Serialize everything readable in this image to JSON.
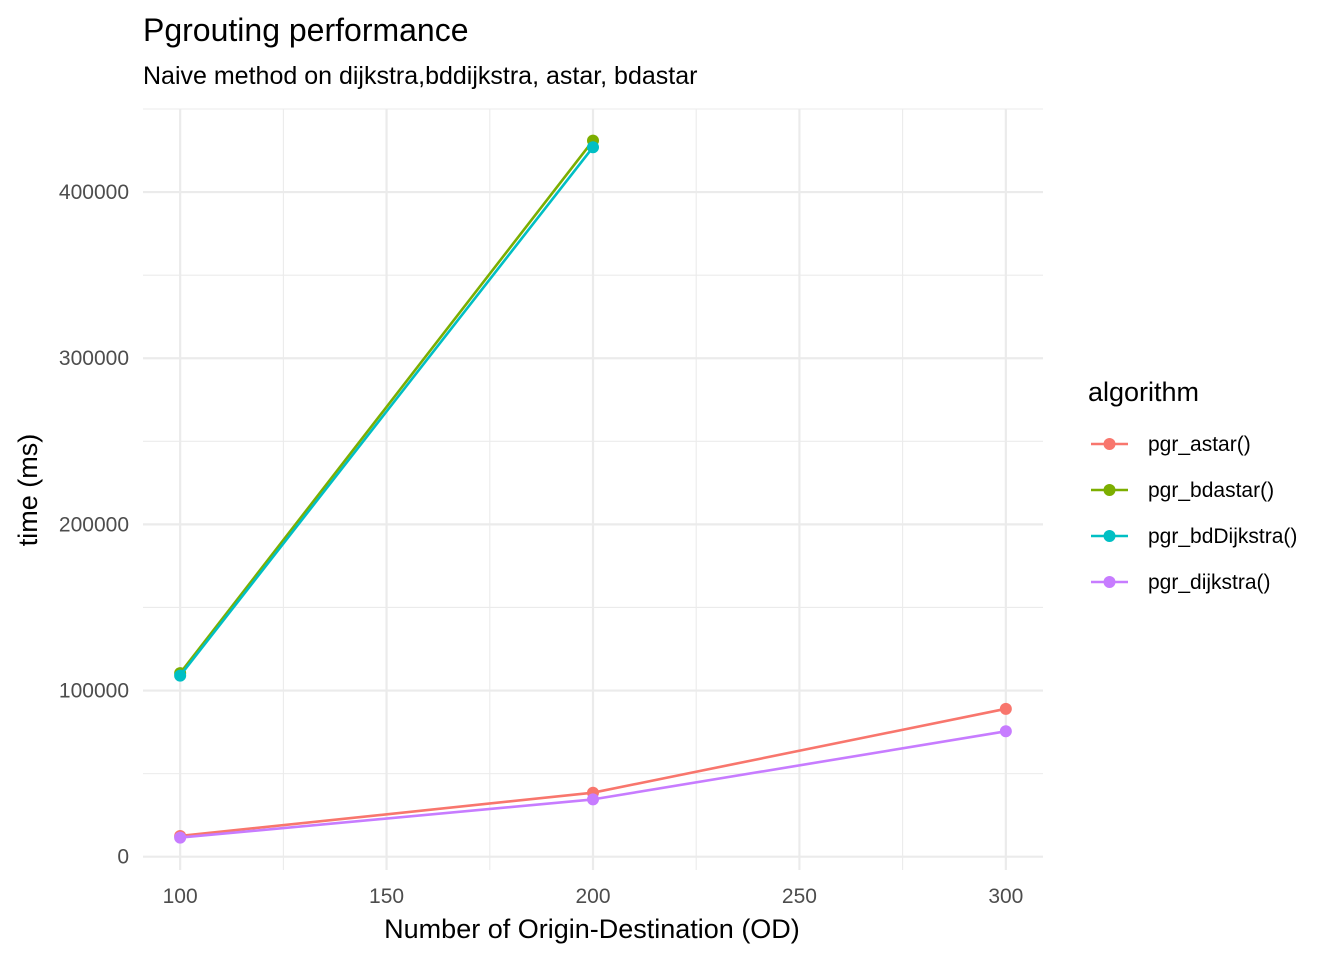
{
  "chart_data": {
    "type": "line",
    "title": "Pgrouting performance",
    "subtitle": "Naive method on dijkstra,bddijkstra, astar, bdastar",
    "xlabel": "Number of Origin-Destination (OD)",
    "ylabel": "time (ms)",
    "xlim": [
      91,
      309
    ],
    "ylim": [
      -8000,
      450000
    ],
    "x_ticks": [
      100,
      150,
      200,
      250,
      300
    ],
    "x_tick_labels": [
      "100",
      "150",
      "200",
      "250",
      "300"
    ],
    "y_ticks": [
      0,
      100000,
      200000,
      300000,
      400000
    ],
    "y_tick_labels": [
      "0",
      "100000",
      "200000",
      "300000",
      "400000"
    ],
    "grid": true,
    "legend_title": "algorithm",
    "legend_position": "right",
    "series": [
      {
        "name": "pgr_astar()",
        "color": "#F8766D",
        "x": [
          100,
          200,
          300
        ],
        "y": [
          12500,
          38500,
          89000
        ]
      },
      {
        "name": "pgr_bdastar()",
        "color": "#7CAE00",
        "x": [
          100,
          200
        ],
        "y": [
          110500,
          431000
        ]
      },
      {
        "name": "pgr_bdDijkstra()",
        "color": "#00BFC4",
        "x": [
          100,
          200
        ],
        "y": [
          109000,
          427000
        ]
      },
      {
        "name": "pgr_dijkstra()",
        "color": "#C77CFF",
        "x": [
          100,
          200,
          300
        ],
        "y": [
          11500,
          34500,
          75500
        ]
      }
    ]
  }
}
